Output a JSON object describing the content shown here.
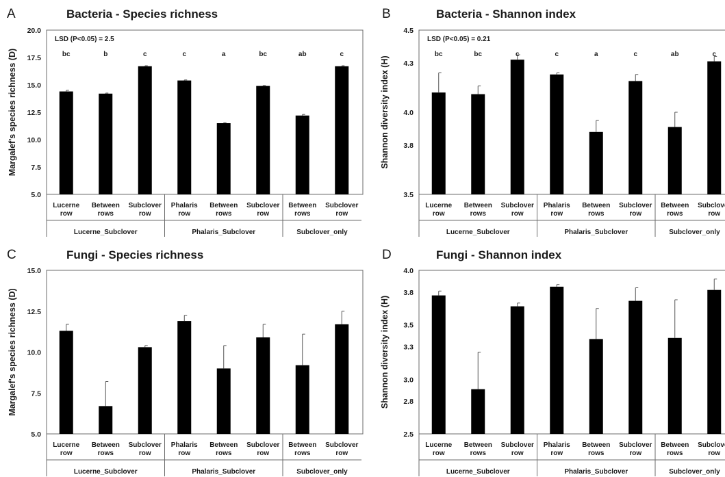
{
  "chart_data": [
    {
      "panel": "A",
      "type": "bar",
      "title": "Bacteria - Species richness",
      "ylabel": "Margalef's species richness (D)",
      "xlabel": "",
      "ylim": [
        5.0,
        20.0
      ],
      "yticks": [
        "5.0",
        "7.5",
        "10.0",
        "12.5",
        "15.0",
        "17.5",
        "20.0"
      ],
      "categories": [
        [
          "Lucerne",
          "row"
        ],
        [
          "Between",
          "rows"
        ],
        [
          "Subclover",
          "row"
        ],
        [
          "Phalaris",
          "row"
        ],
        [
          "Between",
          "rows"
        ],
        [
          "Subclover",
          "row"
        ],
        [
          "Between",
          "rows"
        ],
        [
          "Subclover",
          "row"
        ]
      ],
      "groups": [
        {
          "label": "Lucerne_Subclover",
          "start": 0,
          "end": 2
        },
        {
          "label": "Phalaris_Subclover",
          "start": 3,
          "end": 5
        },
        {
          "label": "Subclover_only",
          "start": 6,
          "end": 7
        }
      ],
      "values": [
        14.4,
        14.2,
        16.7,
        15.4,
        11.5,
        14.9,
        12.2,
        16.7
      ],
      "errors": [
        0.1,
        0.05,
        0.05,
        0.05,
        0.05,
        0.05,
        0.1,
        0.05
      ],
      "letters": [
        "bc",
        "b",
        "c",
        "c",
        "a",
        "bc",
        "ab",
        "c"
      ],
      "annotation": "LSD (P<0.05) = 2.5",
      "bar_color": "#000000",
      "grid": false
    },
    {
      "panel": "B",
      "type": "bar",
      "title": "Bacteria - Shannon index",
      "ylabel": "Shannon diversity index (H)",
      "xlabel": "",
      "ylim": [
        3.5,
        4.5
      ],
      "yticks": [
        "3.5",
        "3.8",
        "4.0",
        "4.3",
        "4.5"
      ],
      "categories": [
        [
          "Lucerne",
          "row"
        ],
        [
          "Between",
          "rows"
        ],
        [
          "Subclover",
          "row"
        ],
        [
          "Phalaris",
          "row"
        ],
        [
          "Between",
          "rows"
        ],
        [
          "Subclover",
          "row"
        ],
        [
          "Between",
          "rows"
        ],
        [
          "Subclover",
          "row"
        ]
      ],
      "groups": [
        {
          "label": "Lucerne_Subclover",
          "start": 0,
          "end": 2
        },
        {
          "label": "Phalaris_Subclover",
          "start": 3,
          "end": 5
        },
        {
          "label": "Subclover_only",
          "start": 6,
          "end": 7
        }
      ],
      "values": [
        4.12,
        4.11,
        4.32,
        4.23,
        3.88,
        4.19,
        3.91,
        4.31
      ],
      "errors": [
        0.12,
        0.05,
        0.03,
        0.01,
        0.07,
        0.04,
        0.09,
        0.03
      ],
      "letters": [
        "bc",
        "bc",
        "c",
        "c",
        "a",
        "c",
        "ab",
        "c"
      ],
      "annotation": "LSD (P<0.05) = 0.21",
      "bar_color": "#000000",
      "grid": false
    },
    {
      "panel": "C",
      "type": "bar",
      "title": "Fungi - Species richness",
      "ylabel": "Margalef's species richness (D)",
      "xlabel": "",
      "ylim": [
        5.0,
        15.0
      ],
      "yticks": [
        "5.0",
        "7.5",
        "10.0",
        "12.5",
        "15.0"
      ],
      "categories": [
        [
          "Lucerne",
          "row"
        ],
        [
          "Between",
          "rows"
        ],
        [
          "Subclover",
          "row"
        ],
        [
          "Phalaris",
          "row"
        ],
        [
          "Between",
          "rows"
        ],
        [
          "Subclover",
          "row"
        ],
        [
          "Between",
          "rows"
        ],
        [
          "Subclover",
          "row"
        ]
      ],
      "groups": [
        {
          "label": "Lucerne_Subclover",
          "start": 0,
          "end": 2
        },
        {
          "label": "Phalaris_Subclover",
          "start": 3,
          "end": 5
        },
        {
          "label": "Subclover_only",
          "start": 6,
          "end": 7
        }
      ],
      "values": [
        11.3,
        6.7,
        10.3,
        11.9,
        9.0,
        10.9,
        9.2,
        11.7
      ],
      "errors": [
        0.4,
        1.5,
        0.1,
        0.35,
        1.4,
        0.8,
        1.9,
        0.8
      ],
      "letters": [],
      "annotation": "",
      "bar_color": "#000000",
      "grid": false
    },
    {
      "panel": "D",
      "type": "bar",
      "title": "Fungi - Shannon index",
      "ylabel": "Shannon diversity index (H)",
      "xlabel": "",
      "ylim": [
        2.5,
        4.0
      ],
      "yticks": [
        "2.5",
        "2.8",
        "3.0",
        "3.3",
        "3.5",
        "3.8",
        "4.0"
      ],
      "categories": [
        [
          "Lucerne",
          "row"
        ],
        [
          "Between",
          "rows"
        ],
        [
          "Subclover",
          "row"
        ],
        [
          "Phalaris",
          "row"
        ],
        [
          "Between",
          "rows"
        ],
        [
          "Subclover",
          "row"
        ],
        [
          "Between",
          "rows"
        ],
        [
          "Subclover",
          "row"
        ]
      ],
      "groups": [
        {
          "label": "Lucerne_Subclover",
          "start": 0,
          "end": 2
        },
        {
          "label": "Phalaris_Subclover",
          "start": 3,
          "end": 5
        },
        {
          "label": "Subclover_only",
          "start": 6,
          "end": 7
        }
      ],
      "values": [
        3.77,
        2.91,
        3.67,
        3.85,
        3.37,
        3.72,
        3.38,
        3.82
      ],
      "errors": [
        0.04,
        0.34,
        0.03,
        0.02,
        0.28,
        0.12,
        0.35,
        0.1
      ],
      "letters": [],
      "annotation": "",
      "bar_color": "#000000",
      "grid": false
    }
  ]
}
